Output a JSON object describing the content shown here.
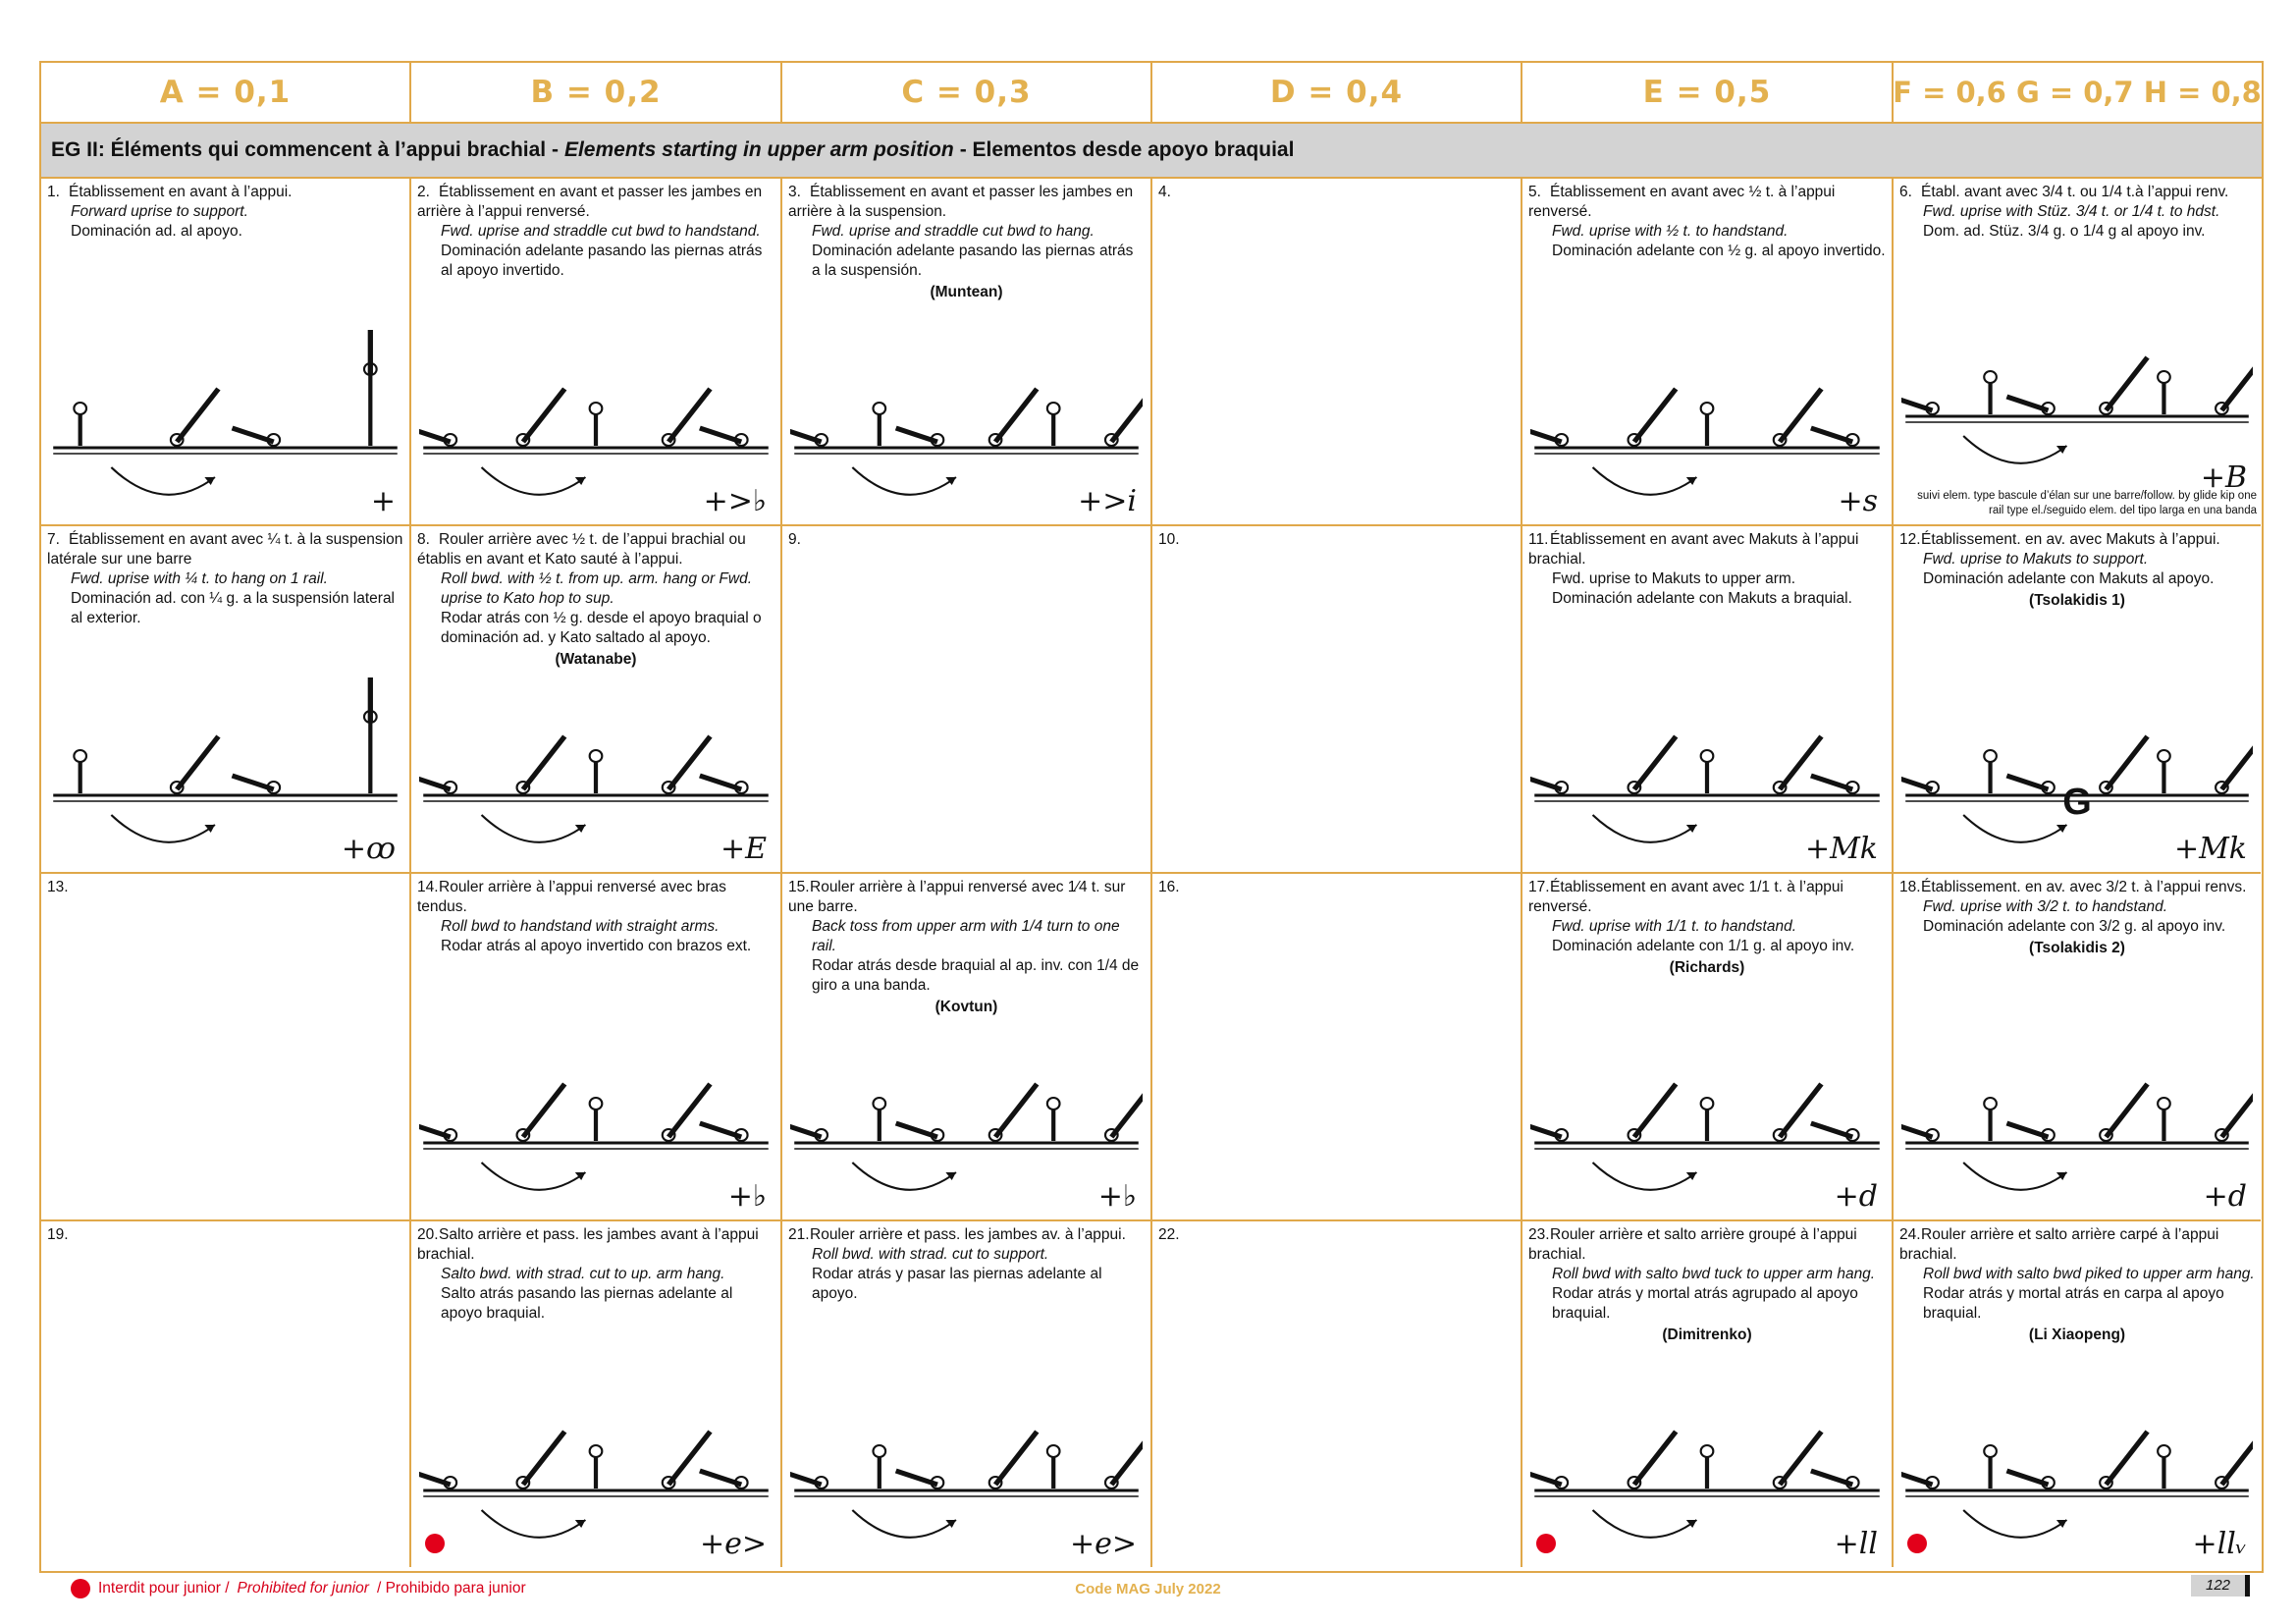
{
  "headers": [
    "A = 0,1",
    "B = 0,2",
    "C = 0,3",
    "D = 0,4",
    "E = 0,5",
    "F = 0,6 G = 0,7 H = 0,8"
  ],
  "group": {
    "fr": "EG II:  Éléments qui commencent à l’appui brachial -",
    "en": "Elements starting in upper arm position",
    "es": "- Elementos desde apoyo braquial"
  },
  "cells": [
    {
      "num": "1.",
      "lines": [
        {
          "t": "Établissement en avant à l’appui.",
          "s": "fr"
        },
        {
          "t": "Forward uprise to support.",
          "s": "en"
        },
        {
          "t": "Dominación ad. al apoyo.",
          "s": "es"
        }
      ],
      "name": "",
      "symbol": "+",
      "figure": true
    },
    {
      "num": "2.",
      "lines": [
        {
          "t": "Établissement en avant et passer les jambes en arrière à l’appui renversé.",
          "s": "fr"
        },
        {
          "t": "Fwd. uprise and straddle cut bwd to handstand.",
          "s": "en"
        },
        {
          "t": "Dominación adelante pasando las piernas atrás al apoyo invertido.",
          "s": "es"
        }
      ],
      "name": "",
      "symbol": "+>♭",
      "figure": true
    },
    {
      "num": "3.",
      "lines": [
        {
          "t": "Établissement en avant et passer les jambes en arrière à la suspension.",
          "s": "fr"
        },
        {
          "t": "Fwd. uprise and straddle cut bwd to hang.",
          "s": "en"
        },
        {
          "t": "Dominación adelante pasando las piernas atrás a la suspensión.",
          "s": "es"
        }
      ],
      "name": "(Muntean)",
      "symbol": "+>i",
      "figure": true
    },
    {
      "num": "4.",
      "lines": [],
      "name": "",
      "symbol": "",
      "figure": false
    },
    {
      "num": "5.",
      "lines": [
        {
          "t": "Établissement en avant avec ½ t. à l’appui renversé.",
          "s": "fr"
        },
        {
          "t": "Fwd. uprise with ½ t. to handstand.",
          "s": "en"
        },
        {
          "t": "Dominación adelante con ½ g. al apoyo invertido.",
          "s": "es"
        }
      ],
      "name": "",
      "symbol": "+s",
      "figure": true
    },
    {
      "num": "6.",
      "lines": [
        {
          "t": "Établ. avant avec 3/4 t. ou 1/4 t.à l’appui renv.",
          "s": "fr"
        },
        {
          "t": "Fwd. uprise with Stüz. 3/4 t. or 1/4 t. to hdst.",
          "s": "en"
        },
        {
          "t": "Dom. ad. Stüz. 3/4 g. o 1/4 g al apoyo inv.",
          "s": "es"
        }
      ],
      "name": "",
      "symbol": "+B",
      "figure": true,
      "note": "suivi elem. type bascule d’élan sur une barre/follow. by glide kip one rail type el./seguido elem. del tipo larga en una banda"
    },
    {
      "num": "7.",
      "lines": [
        {
          "t": "Établissement en avant avec ¼ t. à la suspension latérale sur une barre",
          "s": "fr"
        },
        {
          "t": "Fwd. uprise with ¼ t. to hang on 1 rail.",
          "s": "en"
        },
        {
          "t": "Dominación ad. con ¼ g. a la suspensión lateral al exterior.",
          "s": "es"
        }
      ],
      "name": "",
      "symbol": "+ꝏ",
      "figure": true
    },
    {
      "num": "8.",
      "lines": [
        {
          "t": "Rouler arrière avec ½ t. de l’appui brachial ou établis en avant et Kato sauté à l’appui.",
          "s": "fr"
        },
        {
          "t": "Roll bwd. with ½ t. from up. arm. hang or Fwd. uprise to Kato hop to sup.",
          "s": "en"
        },
        {
          "t": "Rodar atrás con ½ g. desde el apoyo braquial o dominación ad. y Kato saltado al apoyo.",
          "s": "es"
        }
      ],
      "name": "(Watanabe)",
      "symbol": "+E",
      "figure": true
    },
    {
      "num": "9.",
      "lines": [],
      "name": "",
      "symbol": "",
      "figure": false
    },
    {
      "num": "10.",
      "lines": [],
      "name": "",
      "symbol": "",
      "figure": false
    },
    {
      "num": "11.",
      "lines": [
        {
          "t": "Établissement en avant avec Makuts à l’appui brachial.",
          "s": "fr"
        },
        {
          "t": "Fwd. uprise to Makuts to upper arm.",
          "s": "fr"
        },
        {
          "t": "Dominación adelante con Makuts a braquial.",
          "s": "es"
        }
      ],
      "name": "",
      "symbol": "+Mk",
      "figure": true
    },
    {
      "num": "12.",
      "lines": [
        {
          "t": "Établissement. en av. avec Makuts à l’appui.",
          "s": "fr"
        },
        {
          "t": "Fwd. uprise to Makuts to support.",
          "s": "en"
        },
        {
          "t": "Dominación adelante con Makuts al apoyo.",
          "s": "es"
        }
      ],
      "name": "(Tsolakidis 1)",
      "symbol": "+Mk",
      "figure": true,
      "grade": "G"
    },
    {
      "num": "13.",
      "lines": [],
      "name": "",
      "symbol": "",
      "figure": false
    },
    {
      "num": "14.",
      "lines": [
        {
          "t": "Rouler arrière à l’appui renversé avec bras tendus.",
          "s": "fr"
        },
        {
          "t": "Roll bwd to handstand with straight arms.",
          "s": "en"
        },
        {
          "t": "Rodar atrás al apoyo invertido con brazos ext.",
          "s": "es"
        }
      ],
      "name": "",
      "symbol": "+♭",
      "figure": true
    },
    {
      "num": "15.",
      "lines": [
        {
          "t": "Rouler arrière à l’appui renversé avec 1⁄4 t. sur une barre.",
          "s": "fr"
        },
        {
          "t": "Back toss from upper arm with 1/4 turn to one rail.",
          "s": "en"
        },
        {
          "t": "Rodar atrás desde braquial al ap. inv. con 1/4 de giro a una banda.",
          "s": "es"
        }
      ],
      "name": "(Kovtun)",
      "symbol": "+♭",
      "figure": true
    },
    {
      "num": "16.",
      "lines": [],
      "name": "",
      "symbol": "",
      "figure": false
    },
    {
      "num": "17.",
      "lines": [
        {
          "t": "Établissement en avant avec 1/1 t. à l’appui renversé.",
          "s": "fr"
        },
        {
          "t": "Fwd. uprise with 1/1 t. to handstand.",
          "s": "en"
        },
        {
          "t": "Dominación adelante con 1/1 g. al apoyo inv.",
          "s": "es"
        }
      ],
      "name": "(Richards)",
      "symbol": "+d",
      "figure": true
    },
    {
      "num": "18.",
      "lines": [
        {
          "t": "Établissement. en av. avec 3/2 t. à l’appui renvs.",
          "s": "fr"
        },
        {
          "t": "Fwd. uprise with 3/2 t. to handstand.",
          "s": "en"
        },
        {
          "t": "Dominación adelante con 3/2 g. al apoyo inv.",
          "s": "es"
        }
      ],
      "name": "(Tsolakidis 2)",
      "symbol": "+d",
      "figure": true
    },
    {
      "num": "19.",
      "lines": [],
      "name": "",
      "symbol": "",
      "figure": false
    },
    {
      "num": "20.",
      "lines": [
        {
          "t": "Salto arrière et pass. les jambes avant à l’appui brachial.",
          "s": "fr"
        },
        {
          "t": "Salto bwd. with strad. cut to up. arm hang.",
          "s": "en"
        },
        {
          "t": "Salto atrás pasando las piernas adelante al apoyo braquial.",
          "s": "es"
        }
      ],
      "name": "",
      "symbol": "+e>",
      "figure": true,
      "junior": true
    },
    {
      "num": "21.",
      "lines": [
        {
          "t": "Rouler arrière et pass. les jambes av. à l’appui.",
          "s": "fr"
        },
        {
          "t": "Roll bwd. with strad. cut to support.",
          "s": "en"
        },
        {
          "t": "Rodar atrás y pasar las piernas adelante al apoyo.",
          "s": "es"
        }
      ],
      "name": "",
      "symbol": "+e>",
      "figure": true
    },
    {
      "num": "22.",
      "lines": [],
      "name": "",
      "symbol": "",
      "figure": false
    },
    {
      "num": "23.",
      "lines": [
        {
          "t": "Rouler arrière et salto arrière groupé à l’appui brachial.",
          "s": "fr"
        },
        {
          "t": "Roll bwd with salto bwd tuck to upper arm hang.",
          "s": "en"
        },
        {
          "t": "Rodar atrás y mortal atrás agrupado al apoyo braquial.",
          "s": "es"
        }
      ],
      "name": "(Dimitrenko)",
      "symbol": "+ll",
      "figure": true,
      "junior": true
    },
    {
      "num": "24.",
      "lines": [
        {
          "t": "Rouler arrière et salto arrière carpé à l’appui brachial.",
          "s": "fr"
        },
        {
          "t": "Roll bwd with salto bwd piked to upper arm hang.",
          "s": "en"
        },
        {
          "t": "Rodar atrás y mortal atrás en carpa al apoyo braquial.",
          "s": "es"
        }
      ],
      "name": "(Li Xiaopeng)",
      "symbol": "+llᵥ",
      "figure": true,
      "junior": true
    }
  ],
  "footer": {
    "legend_fr": "Interdit pour junior /",
    "legend_en": "Prohibited for junior",
    "legend_es": "/ Prohibido para junior",
    "center": "Code MAG July 2022",
    "page": "122"
  },
  "colors": {
    "accent": "#e3b14f",
    "border": "#e0a84a",
    "group_bg": "#d3d3d3",
    "junior_dot": "#e2001a"
  }
}
